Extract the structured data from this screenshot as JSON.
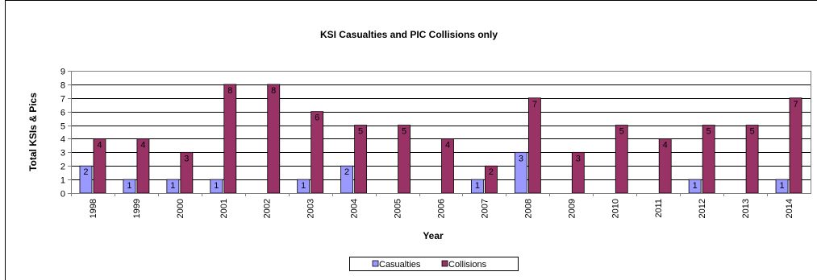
{
  "chart_data": {
    "type": "bar",
    "title": "KSI Casualties and PIC Collisions only",
    "xlabel": "Year",
    "ylabel": "Total KSIs  & Pics",
    "categories": [
      "1998",
      "1999",
      "2000",
      "2001",
      "2002",
      "2003",
      "2004",
      "2005",
      "2006",
      "2007",
      "2008",
      "2009",
      "2010",
      "2011",
      "2012",
      "2013",
      "2014"
    ],
    "series": [
      {
        "name": "Casualties",
        "color": "#9999ff",
        "values": [
          2,
          1,
          1,
          1,
          0,
          1,
          2,
          0,
          0,
          1,
          3,
          0,
          0,
          0,
          1,
          0,
          1
        ]
      },
      {
        "name": "Collisions",
        "color": "#993366",
        "values": [
          4,
          4,
          3,
          8,
          8,
          6,
          5,
          5,
          4,
          2,
          7,
          3,
          5,
          4,
          5,
          5,
          7
        ]
      }
    ],
    "ylim": [
      0,
      9
    ],
    "yticks": [
      0,
      1,
      2,
      3,
      4,
      5,
      6,
      7,
      8,
      9
    ],
    "grid": true,
    "legend_position": "bottom",
    "show_data_labels": true
  }
}
